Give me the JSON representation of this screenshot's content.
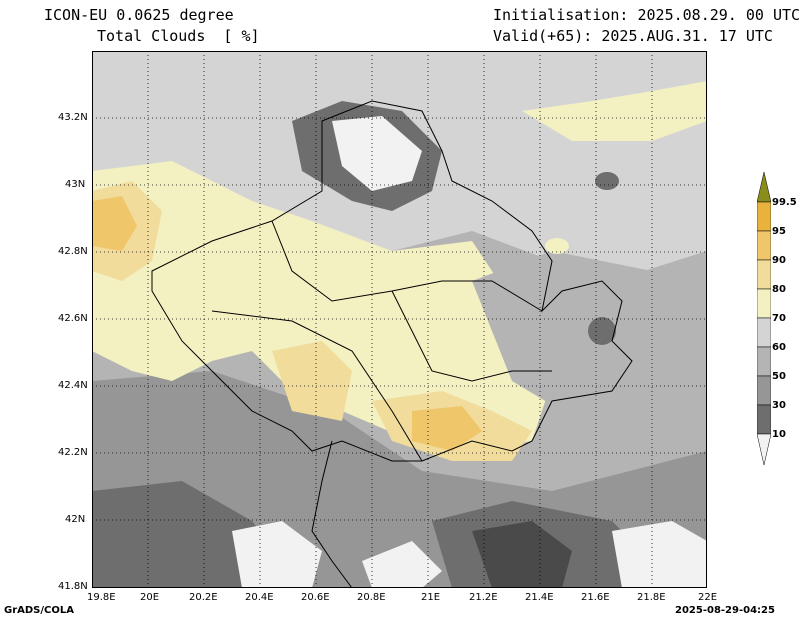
{
  "header": {
    "model": "ICON-EU 0.0625 degree",
    "variable": "Total Clouds  [ %]",
    "init": "Initialisation: 2025.08.29. 00 UTC",
    "valid": "Valid(+65): 2025.AUG.31. 17 UTC"
  },
  "axes": {
    "lat_ticks": [
      "43.2N",
      "43N",
      "42.8N",
      "42.6N",
      "42.4N",
      "42.2N",
      "42N",
      "41.8N"
    ],
    "lon_ticks": [
      "19.8E",
      "20E",
      "20.2E",
      "20.4E",
      "20.6E",
      "20.8E",
      "21E",
      "21.2E",
      "21.4E",
      "21.6E",
      "21.8E",
      "22E"
    ]
  },
  "colorbar": {
    "labels": [
      "99.5",
      "95",
      "90",
      "80",
      "70",
      "60",
      "50",
      "30",
      "10"
    ],
    "colors": [
      "#8a8c1c",
      "#e8b23c",
      "#f0c66a",
      "#f2dc9c",
      "#f3f0c2",
      "#d4d4d4",
      "#b4b4b4",
      "#969696",
      "#6e6e6e",
      "#4a4a4a",
      "#f2f2f2"
    ]
  },
  "footer": {
    "left": "GrADS/COLA",
    "right": "2025-08-29-04:25"
  }
}
